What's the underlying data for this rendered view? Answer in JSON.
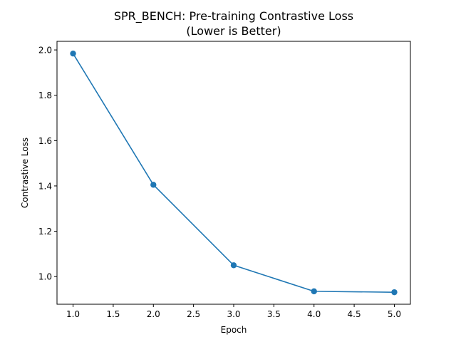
{
  "chart_data": {
    "type": "line",
    "title": "SPR_BENCH: Pre-training Contrastive Loss",
    "subtitle": "(Lower is Better)",
    "xlabel": "Epoch",
    "ylabel": "Contrastive Loss",
    "xlim": [
      0.8,
      5.2
    ],
    "ylim": [
      0.878,
      2.038
    ],
    "xticks": [
      1.0,
      1.5,
      2.0,
      2.5,
      3.0,
      3.5,
      4.0,
      4.5,
      5.0
    ],
    "xtick_labels": [
      "1.0",
      "1.5",
      "2.0",
      "2.5",
      "3.0",
      "3.5",
      "4.0",
      "4.5",
      "5.0"
    ],
    "yticks": [
      1.0,
      1.2,
      1.4,
      1.6,
      1.8,
      2.0
    ],
    "ytick_labels": [
      "1.0",
      "1.2",
      "1.4",
      "1.6",
      "1.8",
      "2.0"
    ],
    "grid": false,
    "legend": "none",
    "series": [
      {
        "color": "#1f77b4",
        "marker": "circle",
        "x": [
          1,
          2,
          3,
          4,
          5
        ],
        "y": [
          1.984,
          1.405,
          1.05,
          0.935,
          0.931
        ]
      }
    ]
  }
}
